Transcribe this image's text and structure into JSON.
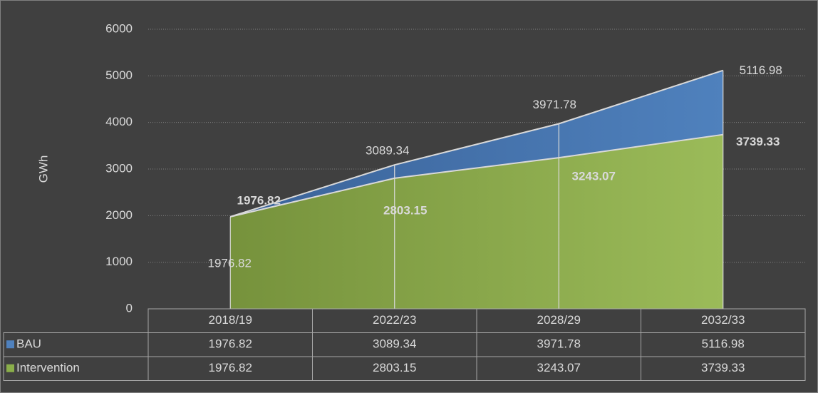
{
  "chart_data": {
    "type": "area",
    "y_label": "GWh",
    "categories": [
      "2018/19",
      "2022/23",
      "2028/29",
      "2032/33"
    ],
    "series": [
      {
        "name": "BAU",
        "color": "#4f81bd",
        "values": [
          1976.82,
          3089.34,
          3971.78,
          5116.98
        ]
      },
      {
        "name": "Intervention",
        "color": "#8aae4a",
        "values": [
          1976.82,
          2803.15,
          3243.07,
          3739.33
        ]
      }
    ],
    "ylim": [
      0,
      6000
    ],
    "yticks": [
      0,
      1000,
      2000,
      3000,
      4000,
      5000,
      6000
    ],
    "grid": true
  }
}
